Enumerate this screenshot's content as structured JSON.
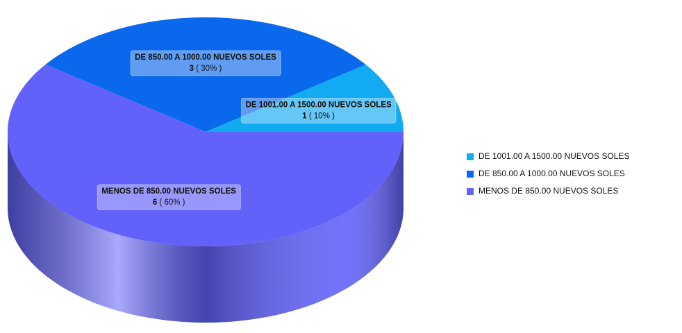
{
  "chart_data": {
    "type": "pie",
    "categories": [
      "DE 1001.00 A 1500.00 NUEVOS SOLES",
      "DE 850.00 A 1000.00 NUEVOS SOLES",
      "MENOS DE 850.00 NUEVOS SOLES"
    ],
    "values": [
      1,
      3,
      6
    ],
    "percents": [
      10,
      30,
      60
    ],
    "percent_labels": [
      "( 10% )",
      "( 30% )",
      "( 60% )"
    ],
    "colors": [
      "#12aaf0",
      "#0a68ec",
      "#6262fa"
    ],
    "legend": "right"
  }
}
